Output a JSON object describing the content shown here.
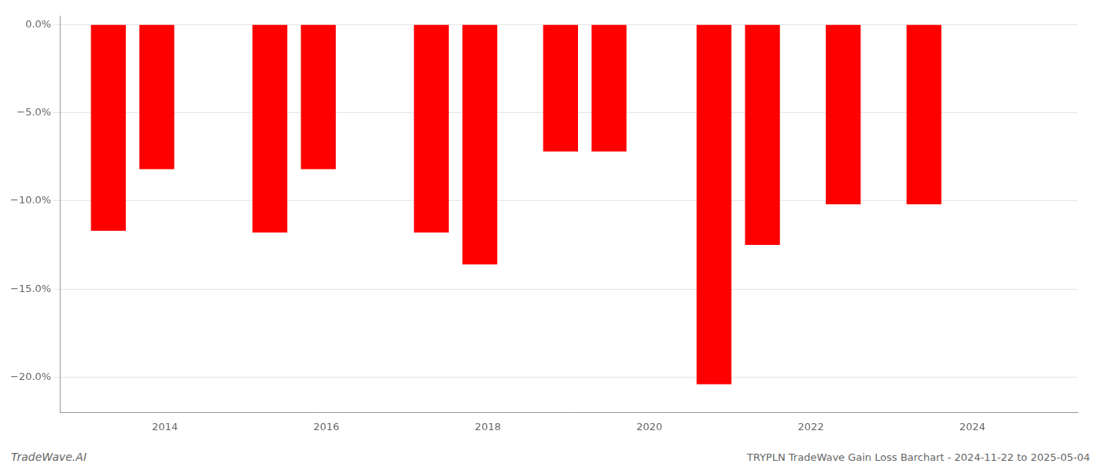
{
  "chart_data": {
    "type": "bar",
    "title": "TRYPLN TradeWave Gain Loss Barchart - 2024-11-22 to 2025-05-04",
    "annotations": [
      "TradeWave.AI"
    ],
    "x": [
      2013.3,
      2013.9,
      2015.3,
      2015.9,
      2017.3,
      2017.9,
      2018.9,
      2019.5,
      2020.8,
      2021.4,
      2022.4,
      2023.4
    ],
    "values": [
      -0.117,
      -0.082,
      -0.118,
      -0.082,
      -0.118,
      -0.136,
      -0.072,
      -0.072,
      -0.204,
      -0.125,
      -0.102,
      -0.102
    ],
    "color": "#ff0000",
    "xlim": [
      2012.7,
      2025.3
    ],
    "xticks": [
      2014,
      2016,
      2018,
      2020,
      2022,
      2024
    ],
    "ylim": [
      -0.22,
      0.005
    ],
    "yticks": [
      {
        "value": 0.0,
        "label": "0.0%"
      },
      {
        "value": -0.05,
        "label": "−5.0%"
      },
      {
        "value": -0.1,
        "label": "−10.0%"
      },
      {
        "value": -0.15,
        "label": "−15.0%"
      },
      {
        "value": -0.2,
        "label": "−20.0%"
      }
    ],
    "grid": "y"
  }
}
